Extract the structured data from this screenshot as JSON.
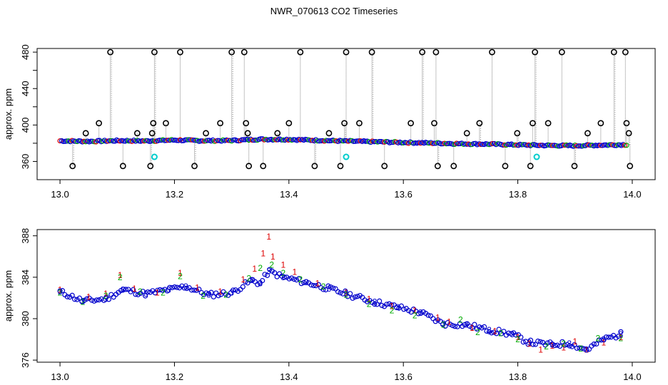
{
  "title": "NWR_070613  CO2 Timeseries",
  "colors": {
    "outlier": "#000000",
    "trace": "#888888",
    "series1": "#dd0000",
    "series2": "#00aa00",
    "series3": "#0000cc",
    "highlight": "#00cccc"
  },
  "chart_data": [
    {
      "type": "scatter",
      "title": "",
      "xlabel": "",
      "ylabel": "approx. ppm",
      "xlim": [
        12.96,
        14.04
      ],
      "ylim": [
        340,
        484
      ],
      "xticks": [
        "13.0",
        "13.2",
        "13.4",
        "13.6",
        "13.8",
        "14.0"
      ],
      "yticks": [
        "360",
        "400",
        "440",
        "480"
      ],
      "baseline": {
        "x": [
          13.0,
          13.05,
          13.1,
          13.15,
          13.2,
          13.25,
          13.3,
          13.35,
          13.4,
          13.45,
          13.5,
          13.55,
          13.6,
          13.65,
          13.7,
          13.75,
          13.8,
          13.85,
          13.9,
          13.95,
          13.99
        ],
        "y": [
          382.6,
          382.0,
          382.8,
          382.5,
          383.5,
          382.7,
          383.0,
          384.3,
          384.1,
          383.2,
          382.3,
          381.6,
          380.8,
          380.2,
          379.4,
          379.0,
          378.2,
          377.6,
          377.3,
          378.0,
          378.4
        ]
      },
      "outliers": {
        "x": [
          13.022,
          13.045,
          13.068,
          13.088,
          13.11,
          13.135,
          13.158,
          13.161,
          13.163,
          13.165,
          13.185,
          13.21,
          13.235,
          13.255,
          13.28,
          13.3,
          13.322,
          13.325,
          13.328,
          13.33,
          13.355,
          13.38,
          13.4,
          13.42,
          13.445,
          13.47,
          13.49,
          13.497,
          13.5,
          13.523,
          13.545,
          13.567,
          13.613,
          13.633,
          13.654,
          13.657,
          13.66,
          13.688,
          13.711,
          13.733,
          13.755,
          13.778,
          13.799,
          13.822,
          13.826,
          13.83,
          13.853,
          13.877,
          13.899,
          13.922,
          13.945,
          13.968,
          13.988,
          13.99,
          13.994,
          13.996
        ],
        "y": [
          355,
          391,
          402,
          480,
          355,
          391,
          355,
          391,
          402,
          480,
          402,
          480,
          355,
          391,
          402,
          480,
          480,
          402,
          391,
          355,
          355,
          391,
          402,
          480,
          355,
          391,
          355,
          402,
          480,
          402,
          480,
          355,
          402,
          480,
          402,
          480,
          355,
          355,
          391,
          402,
          480,
          355,
          391,
          355,
          402,
          480,
          402,
          480,
          355,
          391,
          402,
          480,
          480,
          402,
          391,
          355
        ]
      },
      "highlight_points": {
        "x": [
          13.165,
          13.5,
          13.833
        ],
        "y": [
          365,
          365,
          365
        ]
      }
    },
    {
      "type": "scatter",
      "title": "",
      "xlabel": "",
      "ylabel": "approx. ppm",
      "xlim": [
        12.96,
        14.04
      ],
      "ylim": [
        375.8,
        388.6
      ],
      "xticks": [
        "13.0",
        "13.2",
        "13.4",
        "13.6",
        "13.8",
        "14.0"
      ],
      "yticks": [
        "376",
        "380",
        "384",
        "388"
      ],
      "series": [
        {
          "name": "1",
          "x": [
            13.0,
            13.05,
            13.08,
            13.105,
            13.13,
            13.17,
            13.21,
            13.24,
            13.28,
            13.32,
            13.34,
            13.355,
            13.365,
            13.372,
            13.39,
            13.41,
            13.45,
            13.5,
            13.54,
            13.58,
            13.62,
            13.66,
            13.68,
            13.72,
            13.76,
            13.8,
            13.82,
            13.84,
            13.86,
            13.88,
            13.9,
            13.92,
            13.95,
            13.98
          ],
          "y": [
            382.8,
            382.1,
            382.4,
            384.2,
            382.9,
            382.5,
            384.4,
            383.0,
            382.6,
            383.8,
            384.8,
            386.3,
            387.9,
            386.0,
            385.2,
            384.5,
            383.4,
            382.5,
            381.9,
            381.2,
            380.8,
            380.1,
            379.7,
            379.1,
            378.8,
            378.2,
            377.6,
            377.0,
            377.4,
            377.2,
            377.8,
            377.0,
            377.7,
            378.2
          ]
        },
        {
          "name": "2",
          "x": [
            13.0,
            13.04,
            13.08,
            13.105,
            13.14,
            13.18,
            13.21,
            13.25,
            13.29,
            13.33,
            13.35,
            13.37,
            13.39,
            13.42,
            13.46,
            13.5,
            13.54,
            13.58,
            13.62,
            13.67,
            13.7,
            13.73,
            13.77,
            13.8,
            13.85,
            13.88,
            13.91,
            13.94,
            13.98
          ],
          "y": [
            382.5,
            381.6,
            382.2,
            384.0,
            382.6,
            382.5,
            384.1,
            382.2,
            382.3,
            383.9,
            384.9,
            385.2,
            384.4,
            383.8,
            383.1,
            382.3,
            381.4,
            380.8,
            380.3,
            379.4,
            379.9,
            378.7,
            378.6,
            378.0,
            377.3,
            377.6,
            377.1,
            378.1,
            378.1
          ]
        },
        {
          "name": "3",
          "x": [
            13.0,
            13.04,
            13.08,
            13.11,
            13.15,
            13.19,
            13.22,
            13.26,
            13.3,
            13.335,
            13.35,
            13.365,
            13.39,
            13.43,
            13.47,
            13.5,
            13.55,
            13.59,
            13.63,
            13.67,
            13.71,
            13.75,
            13.79,
            13.82,
            13.86,
            13.89,
            13.92,
            13.95,
            13.98
          ],
          "y": [
            382.6,
            381.7,
            381.9,
            382.8,
            382.4,
            382.8,
            383.1,
            382.3,
            382.5,
            383.7,
            383.4,
            384.6,
            384.0,
            383.5,
            382.9,
            382.4,
            381.6,
            381.1,
            380.6,
            379.5,
            379.4,
            378.9,
            378.5,
            377.7,
            377.5,
            377.6,
            377.0,
            378.0,
            378.5
          ]
        }
      ]
    }
  ]
}
